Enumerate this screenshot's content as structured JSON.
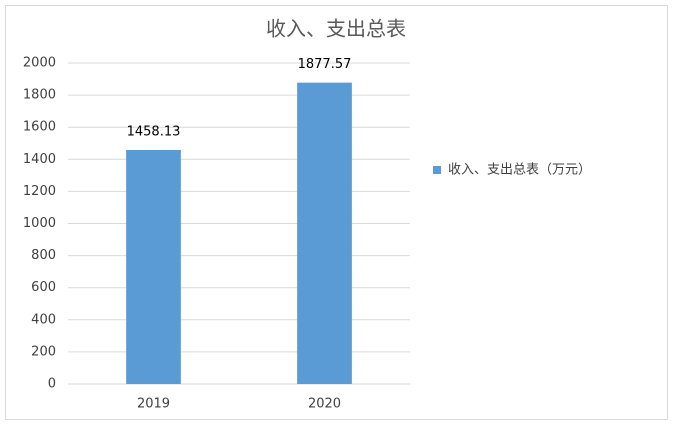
{
  "chart_data": {
    "type": "bar",
    "title": "收入、支出总表",
    "categories": [
      "2019",
      "2020"
    ],
    "series": [
      {
        "name": "收入、支出总表（万元）",
        "color": "#5b9bd5",
        "values": [
          1458.13,
          1877.57
        ]
      }
    ],
    "ylim": [
      0,
      2000
    ],
    "yticks": [
      0,
      200,
      400,
      600,
      800,
      1000,
      1200,
      1400,
      1600,
      1800,
      2000
    ],
    "grid": true,
    "legend": "right"
  }
}
